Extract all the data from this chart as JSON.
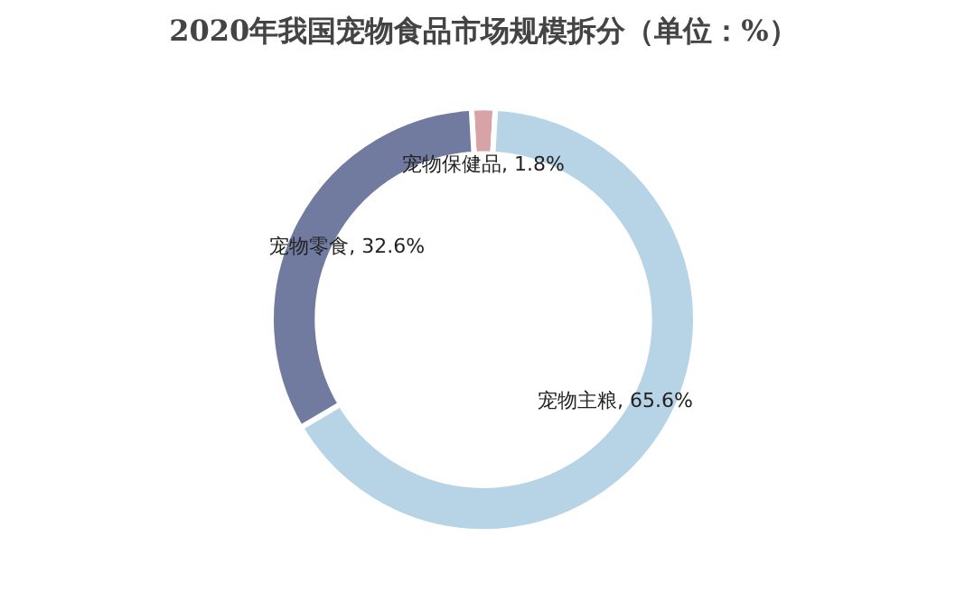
{
  "chart_data": {
    "type": "donut",
    "title": "2020年我国宠物食品市场规模拆分（单位：%）",
    "categories": [
      "宠物保健品",
      "宠物主粮",
      "宠物零食"
    ],
    "values": [
      1.8,
      65.6,
      32.6
    ],
    "colors": [
      "#d8a3a6",
      "#b7d3e6",
      "#717a9f"
    ],
    "data_labels": true,
    "value_labels": [
      "1.8%",
      "65.6%",
      "32.6%"
    ],
    "legend": false
  }
}
